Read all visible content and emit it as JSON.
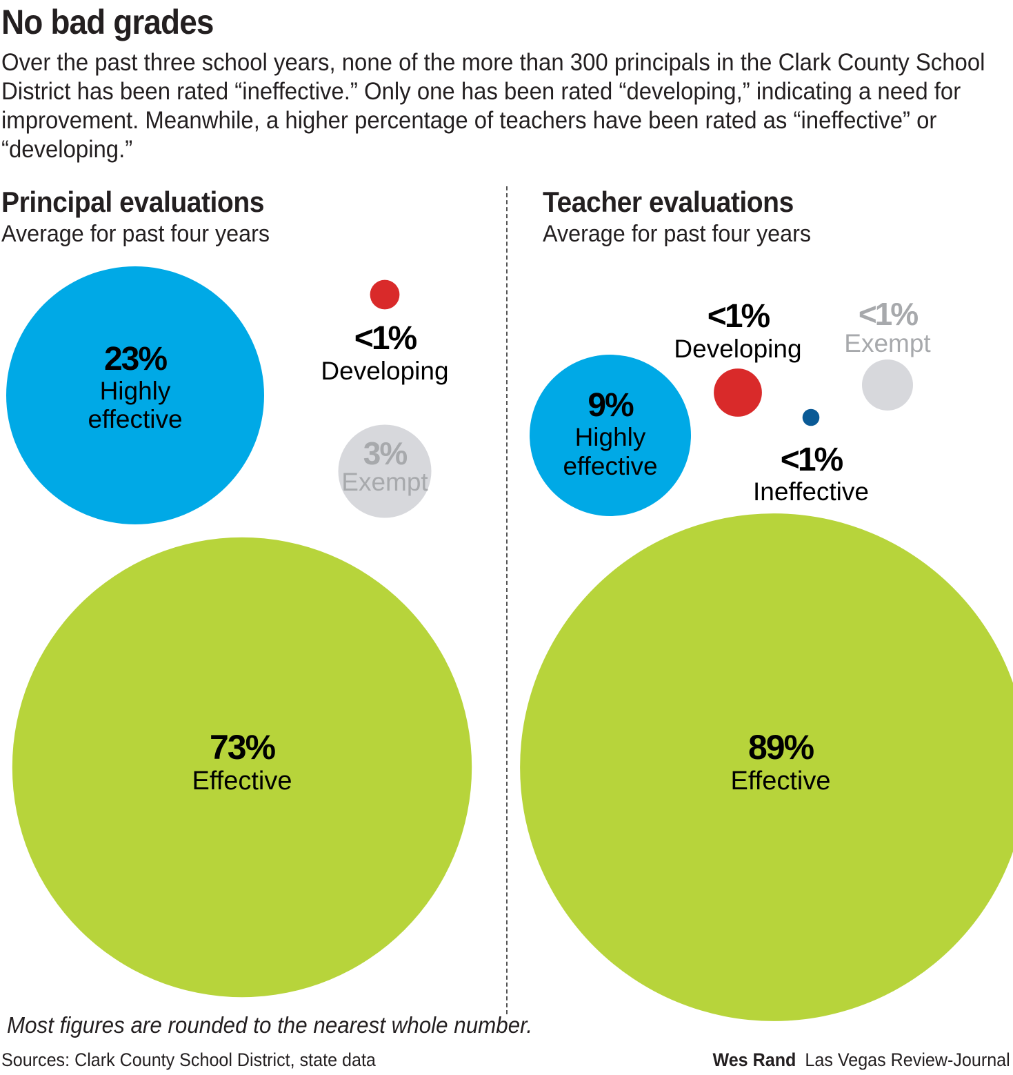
{
  "header": {
    "title": "No bad grades",
    "intro": "Over the past three school years, none of the more than 300 principals in the Clark County School District has been rated “ineffective.” Only one has been rated “developing,” indicating a need for improvement. Meanwhile, a higher percentage of teachers have been rated as “ineffective” or “developing.”"
  },
  "colors": {
    "highly_effective": "#00a9e6",
    "effective": "#b7d43b",
    "developing": "#d92a2a",
    "ineffective": "#0a5a96",
    "exempt": "#d7d8dc",
    "exempt_text": "#a7a9ac",
    "text": "#231f20"
  },
  "chart_data": [
    {
      "type": "bubble",
      "title": "Principal evaluations",
      "subtitle": "Average for past four years",
      "series": [
        {
          "name": "Highly effective",
          "label": "23%",
          "value": 23
        },
        {
          "name": "Effective",
          "label": "73%",
          "value": 73
        },
        {
          "name": "Developing",
          "label": "<1%",
          "value": 0.3
        },
        {
          "name": "Exempt",
          "label": "3%",
          "value": 3
        }
      ]
    },
    {
      "type": "bubble",
      "title": "Teacher evaluations",
      "subtitle": "Average for past four years",
      "series": [
        {
          "name": "Highly effective",
          "label": "9%",
          "value": 9
        },
        {
          "name": "Effective",
          "label": "89%",
          "value": 89
        },
        {
          "name": "Developing",
          "label": "<1%",
          "value": 0.8
        },
        {
          "name": "Ineffective",
          "label": "<1%",
          "value": 0.1
        },
        {
          "name": "Exempt",
          "label": "<1%",
          "value": 0.9
        }
      ]
    }
  ],
  "footer": {
    "note": "Most figures are rounded to the nearest whole number.",
    "sources": "Sources: Clark County School District, state data",
    "author": "Wes Rand",
    "publication": "Las Vegas Review-Journal"
  }
}
